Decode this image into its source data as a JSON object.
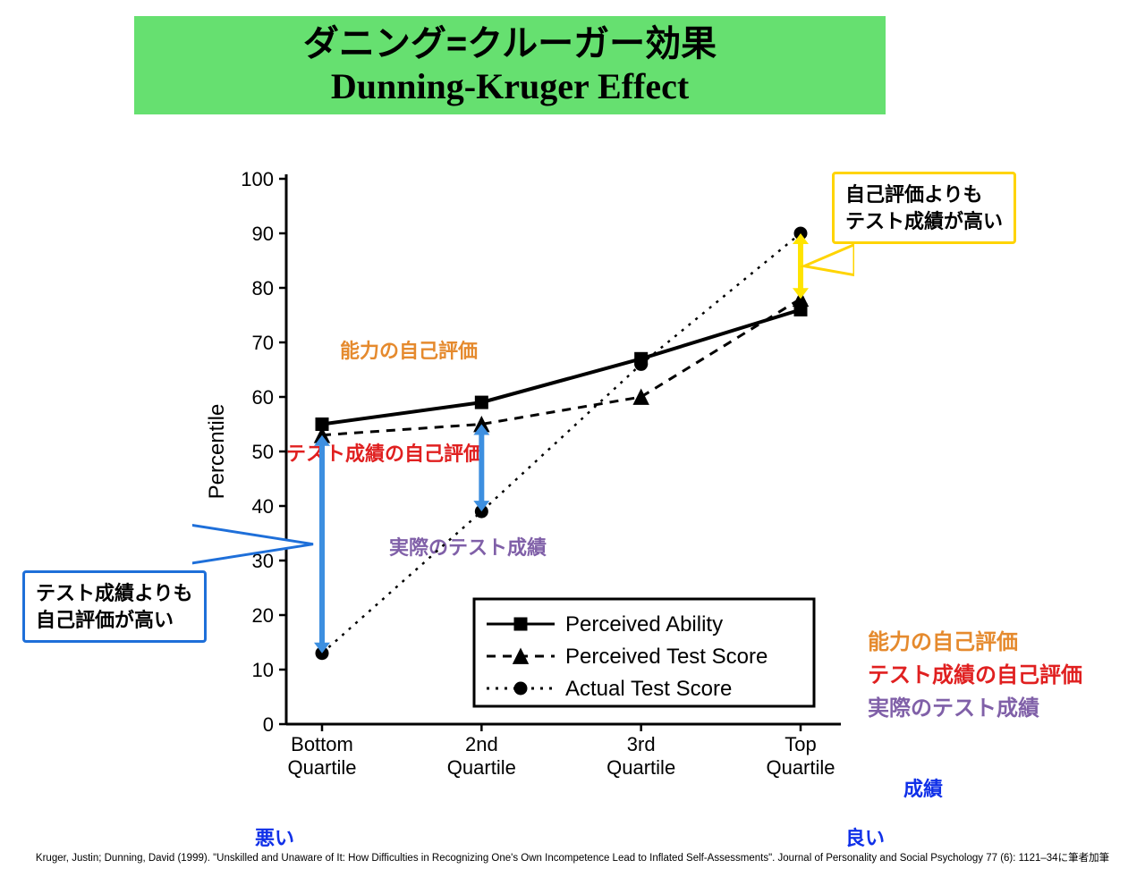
{
  "title": {
    "ja": "ダニング=クルーガー効果",
    "en": "Dunning-Kruger Effect"
  },
  "colors": {
    "banner_bg": "#66e070",
    "series": "#000000",
    "callout_left_border": "#1e6fd9",
    "callout_right_border": "#ffd400",
    "arrow_blue": "#3d8fe0",
    "arrow_yellow": "#ffe400",
    "orange": "#e58a2e",
    "red": "#e02020",
    "purple": "#8060a8",
    "blue": "#1030e8",
    "legend_border": "#000000",
    "bg": "#ffffff"
  },
  "chart": {
    "x_categories": [
      "Bottom\nQuartile",
      "2nd\nQuartile",
      "3rd\nQuartile",
      "Top\nQuartile"
    ],
    "y_label": "Percentile",
    "y_min": 0,
    "y_max": 100,
    "y_tick_step": 10,
    "series": [
      {
        "key": "perceived_ability",
        "label": "Perceived Ability",
        "marker": "square",
        "dash": "solid",
        "line_width": 4,
        "values": [
          55,
          59,
          67,
          76
        ]
      },
      {
        "key": "perceived_test_score",
        "label": "Perceived Test Score",
        "marker": "triangle",
        "dash": "dashed",
        "line_width": 3,
        "values": [
          53,
          55,
          60,
          78
        ]
      },
      {
        "key": "actual_test_score",
        "label": "Actual Test Score",
        "marker": "circle",
        "dash": "dotted",
        "line_width": 2.5,
        "values": [
          13,
          39,
          66,
          90
        ]
      }
    ],
    "gap_arrows": [
      {
        "x_index": 0,
        "y_top": 53,
        "y_bot": 13,
        "color": "#3d8fe0",
        "width": 6
      },
      {
        "x_index": 1,
        "y_top": 55,
        "y_bot": 39,
        "color": "#3d8fe0",
        "width": 6
      },
      {
        "x_index": 3,
        "y_top": 90,
        "y_bot": 78,
        "color": "#ffe400",
        "width": 6
      }
    ]
  },
  "in_chart_annotations": {
    "orange": "能力の自己評価",
    "red": "テスト成績の自己評価",
    "purple": "実際のテスト成績"
  },
  "callouts": {
    "left": {
      "line1": "テスト成績よりも",
      "line2": "自己評価が高い"
    },
    "right": {
      "line1": "自己評価よりも",
      "line2": "テスト成績が高い"
    }
  },
  "side_legend": {
    "orange": "能力の自己評価",
    "red": "テスト成績の自己評価",
    "purple": "実際のテスト成績"
  },
  "axis_annotations": {
    "bad": "悪い",
    "good": "良い",
    "score": "成績"
  },
  "citation": "Kruger, Justin; Dunning, David (1999). \"Unskilled and Unaware of It: How Difficulties in Recognizing One's Own Incompetence Lead to Inflated Self-Assessments\". Journal of Personality and Social Psychology 77 (6): 1121–34に筆者加筆"
}
